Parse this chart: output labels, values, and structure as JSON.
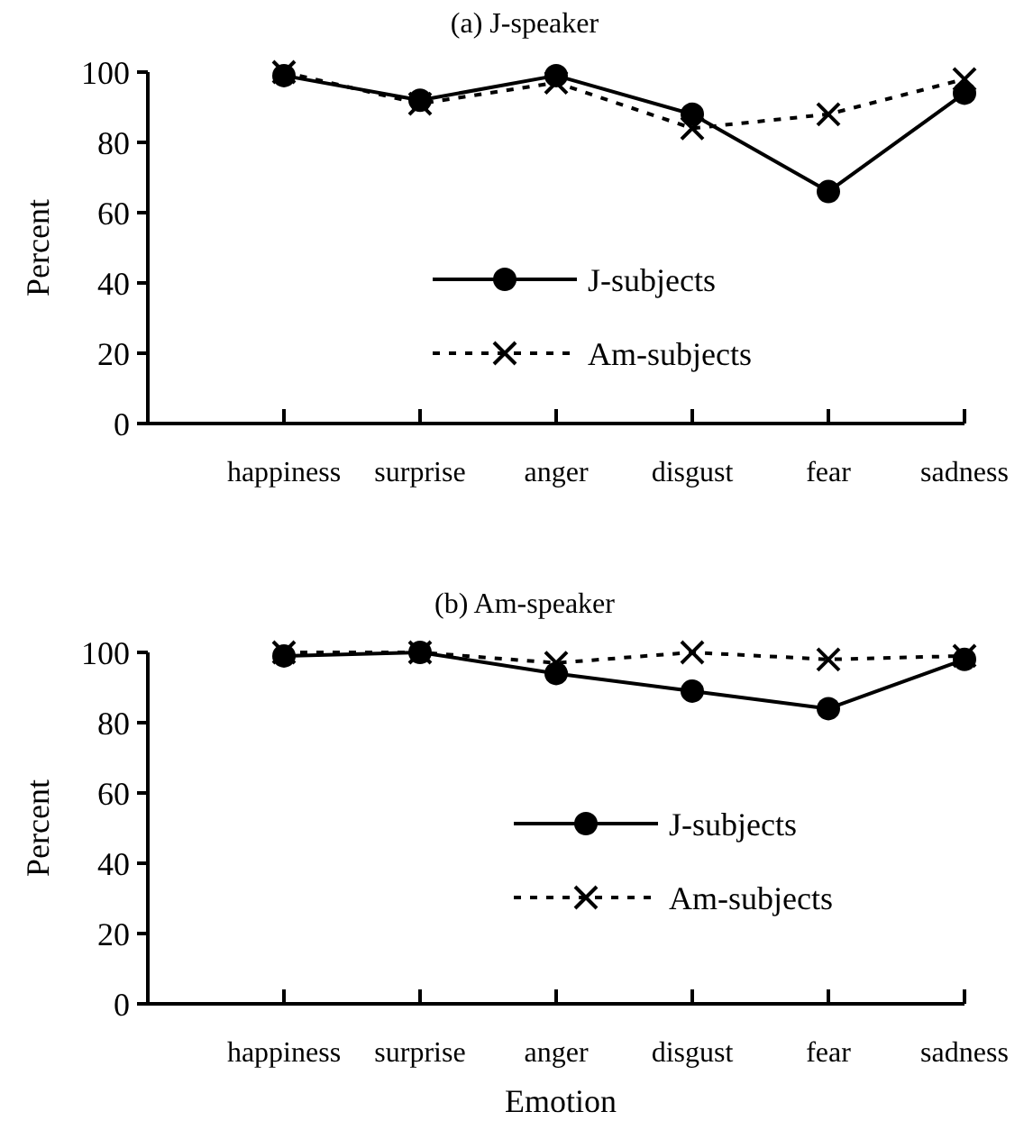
{
  "chart_data": [
    {
      "type": "line",
      "title": "(a) J-speaker",
      "ylabel": "Percent",
      "categories": [
        null,
        "happiness",
        "surprise",
        "anger",
        "disgust",
        "fear",
        "sadness"
      ],
      "ylim": [
        0,
        100
      ],
      "yticks": [
        0,
        20,
        40,
        60,
        80,
        100
      ],
      "grid": false,
      "legend": "bottom",
      "series": [
        {
          "name": "J-subjects",
          "color": "#000000",
          "marker": "circle",
          "line_style": "solid",
          "values": [
            null,
            99,
            92,
            99,
            88,
            66,
            94
          ]
        },
        {
          "name": "Am-subjects",
          "color": "#000000",
          "marker": "cross",
          "line_style": "dashed",
          "values": [
            null,
            100,
            91,
            97,
            84,
            88,
            98
          ]
        }
      ]
    },
    {
      "type": "line",
      "title": "(b) Am-speaker",
      "xlabel": "Emotion",
      "ylabel": "Percent",
      "categories": [
        null,
        "happiness",
        "surprise",
        "anger",
        "disgust",
        "fear",
        "sadness"
      ],
      "ylim": [
        0,
        100
      ],
      "yticks": [
        0,
        20,
        40,
        60,
        80,
        100
      ],
      "grid": false,
      "legend": "bottom right",
      "series": [
        {
          "name": "J-subjects",
          "color": "#000000",
          "marker": "circle",
          "line_style": "solid",
          "values": [
            null,
            99,
            100,
            94,
            89,
            84,
            98
          ]
        },
        {
          "name": "Am-subjects",
          "color": "#000000",
          "marker": "cross",
          "line_style": "dashed",
          "values": [
            null,
            100,
            100,
            97,
            100,
            98,
            99
          ]
        }
      ]
    }
  ]
}
